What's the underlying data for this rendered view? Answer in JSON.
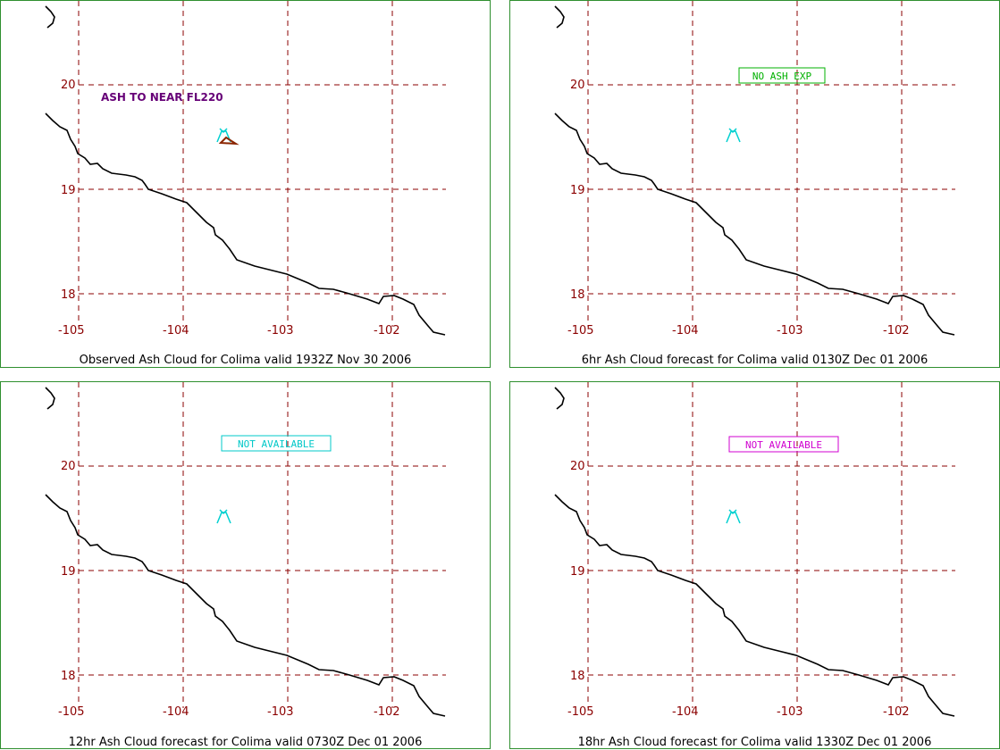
{
  "colors": {
    "border": "#2f8f2f",
    "grid": "#8b0000",
    "coast": "#000000",
    "volcano": "#00d0d0",
    "ash_polygon": "#8b2500"
  },
  "axes": {
    "lon_labels": [
      "-105",
      "-104",
      "-103",
      "-102"
    ],
    "lat_labels": [
      "20",
      "19",
      "18"
    ]
  },
  "panels": [
    {
      "caption": "Observed Ash Cloud for Colima valid 1932Z Nov 30 2006",
      "annotation": "ASH TO NEAR FL220",
      "volcano_icon": "volcano-icon"
    },
    {
      "caption": "6hr Ash Cloud forecast for Colima valid 0130Z Dec 01 2006",
      "status": "NO ASH EXP",
      "status_color": "#00b000",
      "volcano_icon": "volcano-icon"
    },
    {
      "caption": "12hr Ash Cloud forecast for Colima valid 0730Z Dec 01 2006",
      "status": "NOT AVAILABLE",
      "status_color": "#00c8c8",
      "volcano_icon": "volcano-icon"
    },
    {
      "caption": "18hr Ash Cloud forecast for Colima valid 1330Z Dec 01 2006",
      "status": "NOT AVAILABLE",
      "status_color": "#d000d0",
      "volcano_icon": "volcano-icon"
    }
  ]
}
